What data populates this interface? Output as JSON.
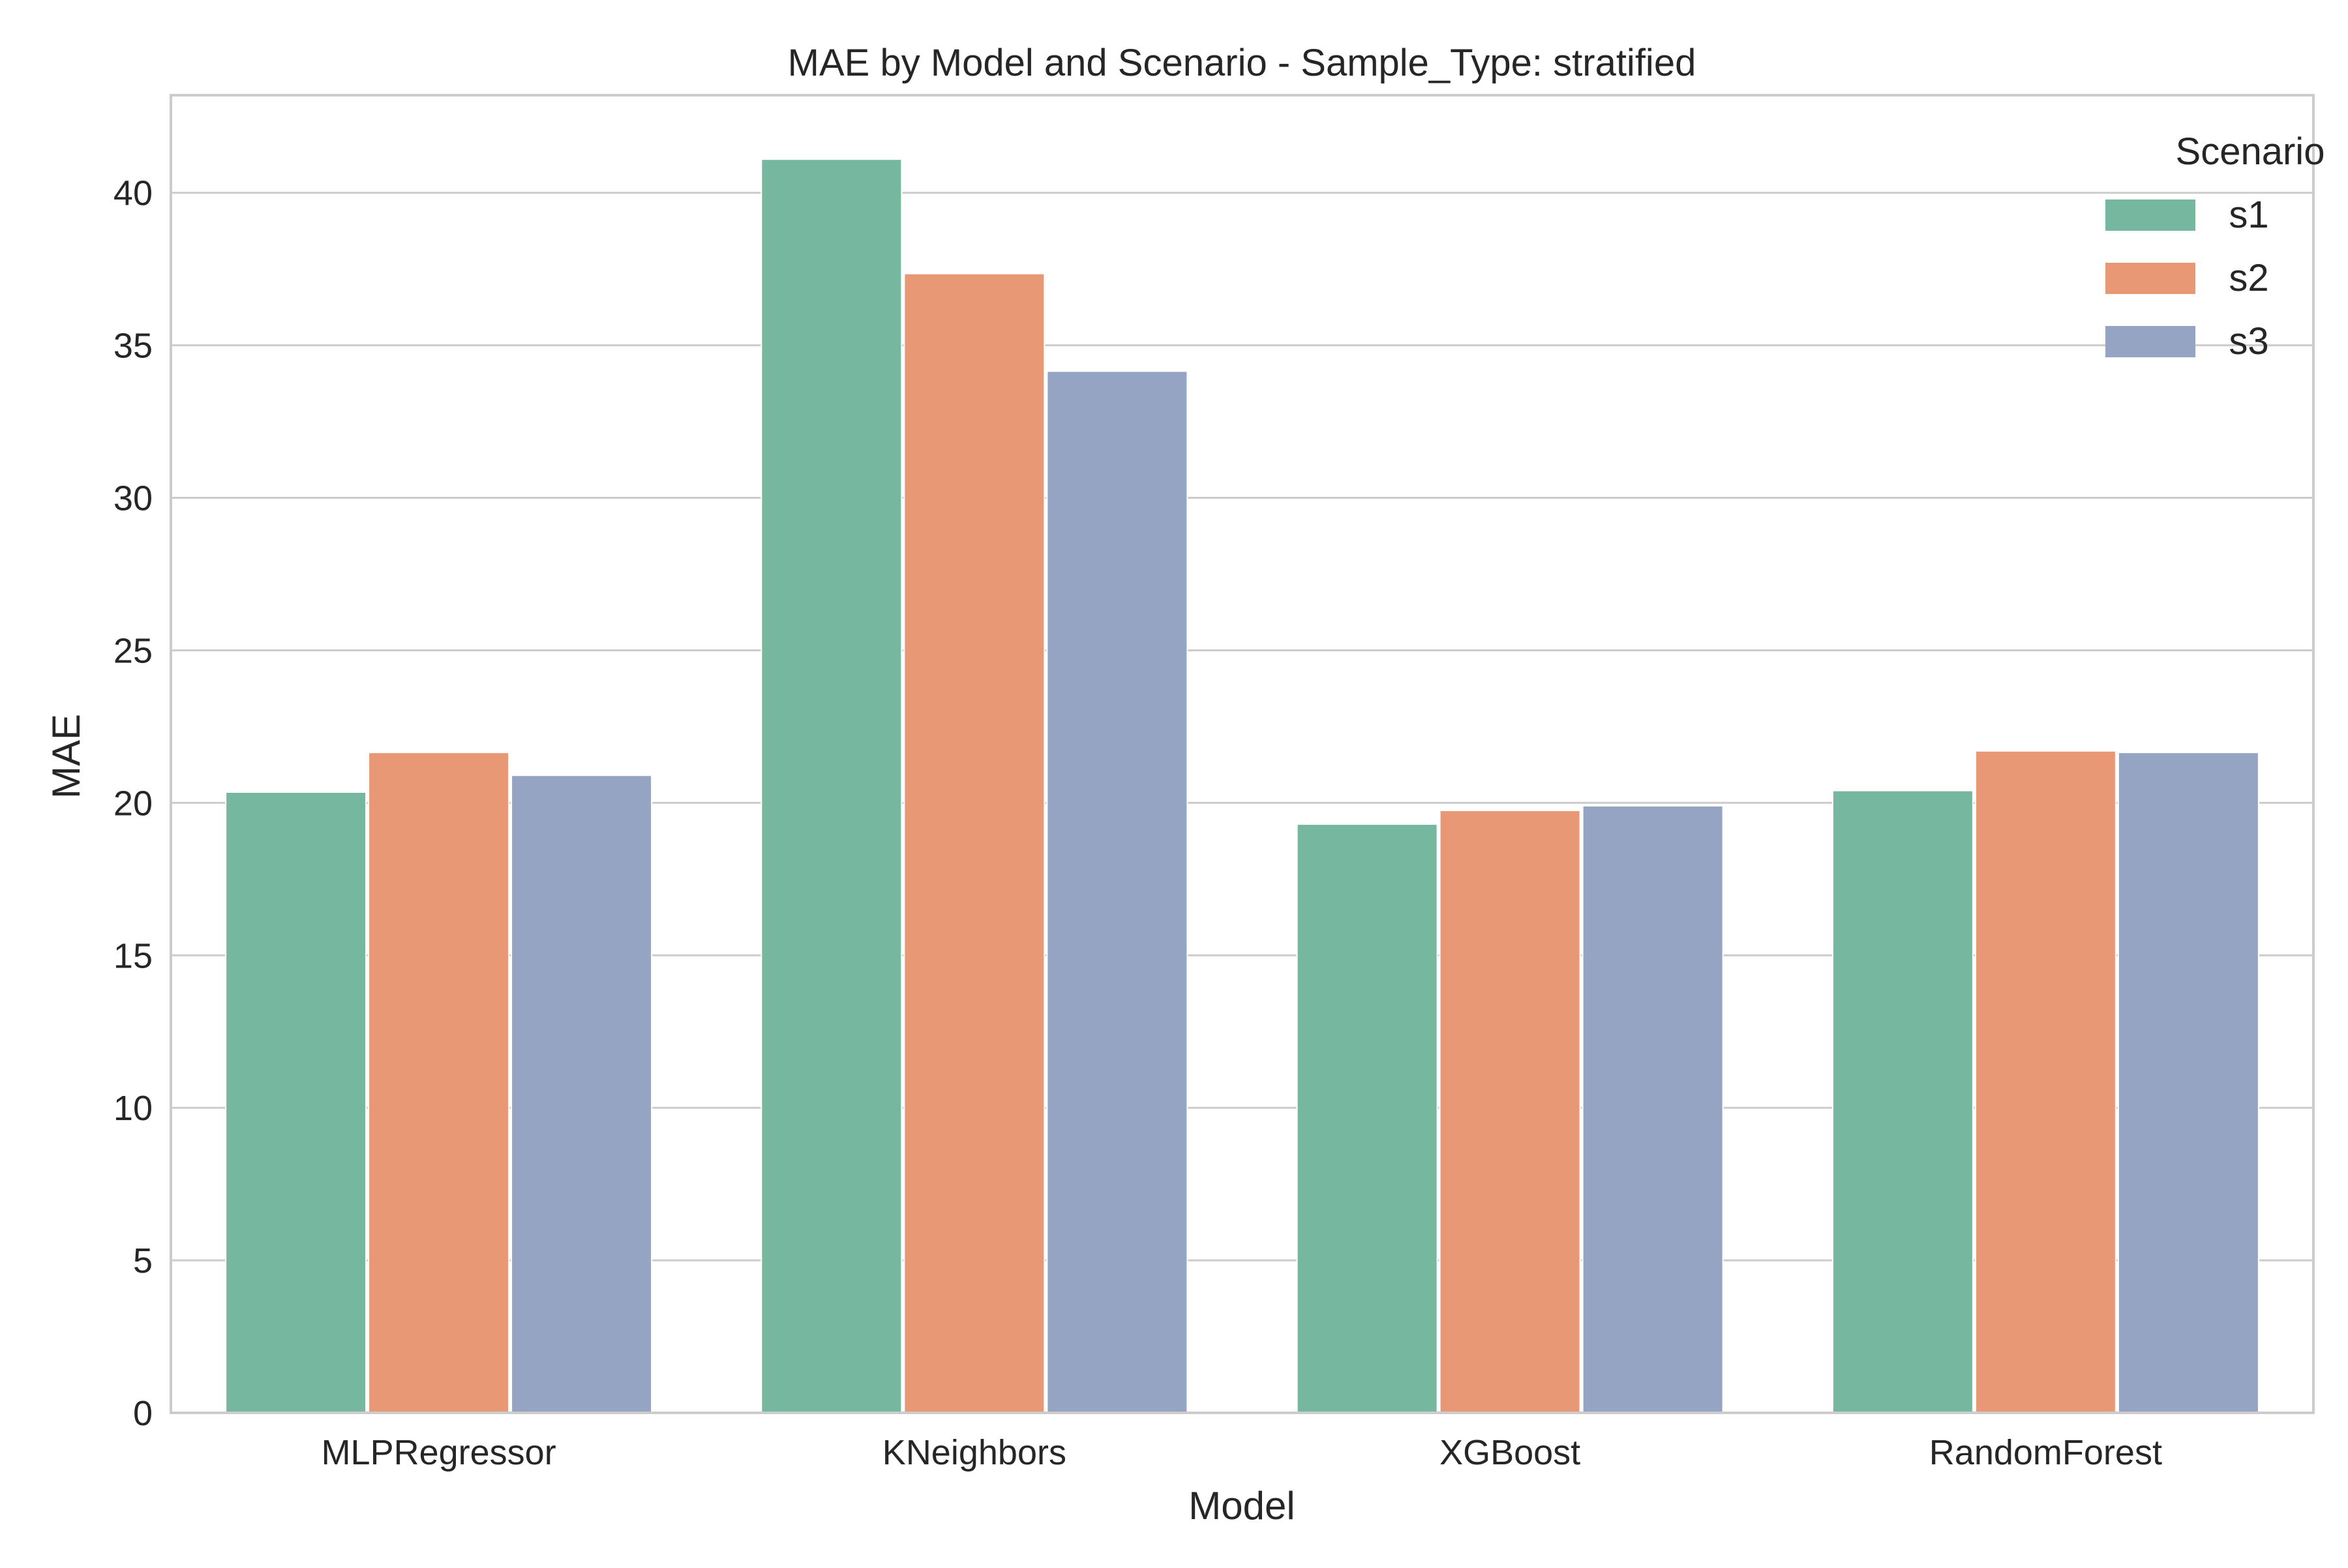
{
  "chart_data": {
    "type": "bar",
    "title": "MAE by Model and Scenario - Sample_Type: stratified",
    "xlabel": "Model",
    "ylabel": "MAE",
    "categories": [
      "MLPRegressor",
      "KNeighbors",
      "XGBoost",
      "RandomForest"
    ],
    "series": [
      {
        "name": "s1",
        "color": "#76b7a0",
        "values": [
          20.35,
          41.1,
          19.3,
          20.4
        ]
      },
      {
        "name": "s2",
        "color": "#e99875",
        "values": [
          21.65,
          37.35,
          19.75,
          21.7
        ]
      },
      {
        "name": "s3",
        "color": "#96a4c3",
        "values": [
          20.9,
          34.15,
          19.9,
          21.65
        ]
      }
    ],
    "ylim": [
      0,
      43.2
    ],
    "yticks": [
      0,
      5,
      10,
      15,
      20,
      25,
      30,
      35,
      40
    ],
    "grid": true,
    "legend": {
      "title": "Scenario",
      "placement": "top-right"
    }
  }
}
